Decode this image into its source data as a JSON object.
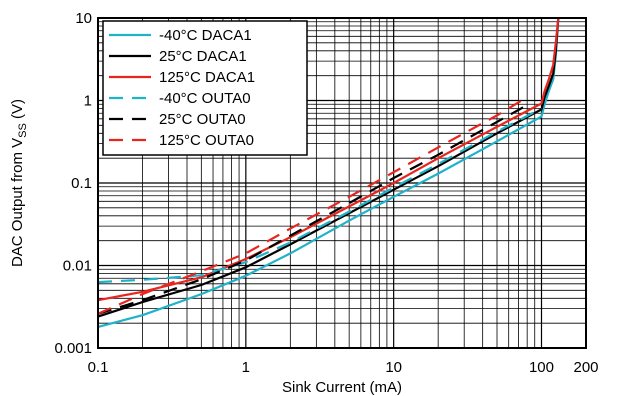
{
  "chart_data": {
    "type": "line",
    "x_scale": "log",
    "y_scale": "log",
    "xlim": [
      0.1,
      200
    ],
    "ylim": [
      0.001,
      10
    ],
    "xlabel": "Sink Current (mA)",
    "ylabel_main": "DAC Output from V",
    "ylabel_sub": "SS",
    "ylabel_tail": " (V)",
    "x_ticks": [
      0.1,
      1,
      10,
      100,
      200
    ],
    "x_tick_labels": [
      "0.1",
      "1",
      "10",
      "100",
      "200"
    ],
    "y_ticks": [
      0.001,
      0.01,
      0.1,
      1,
      10
    ],
    "y_tick_labels": [
      "0.001",
      "0.01",
      "0.1",
      "1",
      "10"
    ],
    "grid": true,
    "legend_position": "top-left",
    "series": [
      {
        "name": "-40°C DACA1",
        "color": "#1fb2c8",
        "dash": "solid",
        "x": [
          0.1,
          0.2,
          0.5,
          1,
          2,
          5,
          10,
          20,
          50,
          100,
          105,
          112,
          120,
          125,
          130
        ],
        "y": [
          0.0018,
          0.0025,
          0.0045,
          0.0075,
          0.014,
          0.035,
          0.068,
          0.13,
          0.32,
          0.64,
          0.9,
          1.3,
          1.8,
          3.5,
          10
        ]
      },
      {
        "name": "25°C DACA1",
        "color": "#000000",
        "dash": "solid",
        "x": [
          0.1,
          0.2,
          0.5,
          1,
          2,
          5,
          10,
          20,
          50,
          100,
          105,
          112,
          120,
          125,
          130
        ],
        "y": [
          0.0024,
          0.0036,
          0.0058,
          0.0095,
          0.018,
          0.043,
          0.083,
          0.16,
          0.4,
          0.78,
          1.1,
          1.5,
          2.1,
          4,
          10
        ]
      },
      {
        "name": "125°C DACA1",
        "color": "#e8251f",
        "dash": "solid",
        "x": [
          0.1,
          0.2,
          0.5,
          1,
          2,
          5,
          10,
          20,
          50,
          100,
          105,
          112,
          120,
          125,
          130
        ],
        "y": [
          0.0038,
          0.0048,
          0.0072,
          0.012,
          0.022,
          0.052,
          0.1,
          0.2,
          0.48,
          0.92,
          1.3,
          1.8,
          2.7,
          5,
          10
        ]
      },
      {
        "name": "-40°C OUTA0",
        "color": "#1fb2c8",
        "dash": "dashed",
        "x": [
          0.1,
          0.2,
          0.5,
          1,
          2,
          5,
          10,
          20,
          50,
          100
        ],
        "y": [
          0.0063,
          0.0067,
          0.0076,
          0.011,
          0.019,
          0.045,
          0.088,
          0.17,
          0.42,
          0.8
        ]
      },
      {
        "name": "25°C OUTA0",
        "color": "#000000",
        "dash": "dashed",
        "x": [
          0.1,
          0.2,
          0.5,
          1,
          2,
          5,
          10,
          20,
          50,
          80
        ],
        "y": [
          0.0026,
          0.0038,
          0.0068,
          0.0115,
          0.023,
          0.057,
          0.115,
          0.22,
          0.55,
          0.88
        ]
      },
      {
        "name": "125°C OUTA0",
        "color": "#e8251f",
        "dash": "dashed",
        "x": [
          0.1,
          0.2,
          0.5,
          1,
          2,
          5,
          10,
          20,
          50,
          80
        ],
        "y": [
          0.0026,
          0.0045,
          0.0085,
          0.014,
          0.028,
          0.068,
          0.135,
          0.27,
          0.66,
          1.1
        ]
      }
    ]
  }
}
